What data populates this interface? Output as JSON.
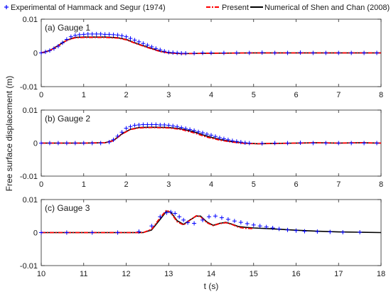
{
  "chart_data": {
    "type": "line",
    "ylabel": "Free surface displacement (m)",
    "xlabel": "t (s)",
    "legend": {
      "placement": "top",
      "entries": [
        {
          "label": "Experimental of Hammack and Segur (1974)",
          "marker": "+",
          "color": "#0000ff"
        },
        {
          "label": "Present",
          "style": "dash-dot",
          "color": "#ff0000"
        },
        {
          "label": "Numerical of Shen and Chan (2008)",
          "style": "solid",
          "color": "#000000"
        }
      ]
    },
    "panels": [
      {
        "title": "(a) Gauge 1",
        "xlim": [
          0,
          8
        ],
        "ylim": [
          -0.01,
          0.01
        ],
        "xticks": [
          "0",
          "1",
          "2",
          "3",
          "4",
          "5",
          "6",
          "7",
          "8"
        ],
        "yticks": [
          "-0.01",
          "0",
          "0.01"
        ],
        "series": [
          {
            "name": "Numerical of Shen and Chan (2008)",
            "color": "#000000",
            "style": "solid",
            "x": [
              0,
              0.2,
              0.4,
              0.6,
              0.8,
              1.0,
              1.5,
              1.8,
              2.0,
              2.2,
              2.5,
              2.8,
              3.0,
              3.3,
              4.0,
              5.0,
              6.0,
              7.0,
              8.0
            ],
            "y": [
              0,
              0.0007,
              0.0022,
              0.0038,
              0.0046,
              0.0047,
              0.0047,
              0.0045,
              0.004,
              0.003,
              0.0017,
              0.0005,
              0.0,
              -0.0002,
              -0.0001,
              0,
              0,
              0,
              0
            ]
          },
          {
            "name": "Present",
            "color": "#ff0000",
            "style": "dash-dot",
            "x": [
              0,
              0.2,
              0.4,
              0.6,
              0.8,
              1.0,
              1.5,
              1.8,
              2.0,
              2.2,
              2.5,
              2.8,
              3.0,
              3.3,
              4.0,
              5.0,
              6.0,
              7.0,
              8.0
            ],
            "y": [
              0,
              0.0007,
              0.0021,
              0.0037,
              0.0045,
              0.0046,
              0.0046,
              0.0044,
              0.0039,
              0.0029,
              0.0016,
              0.0004,
              0.0,
              -0.0002,
              -0.0001,
              0,
              0,
              0,
              0
            ]
          },
          {
            "name": "Experimental of Hammack and Segur (1974)",
            "color": "#0000ff",
            "style": "markers",
            "x": [
              0,
              0.1,
              0.2,
              0.3,
              0.4,
              0.5,
              0.6,
              0.7,
              0.8,
              0.9,
              1.0,
              1.1,
              1.2,
              1.3,
              1.4,
              1.5,
              1.6,
              1.7,
              1.8,
              1.9,
              2.0,
              2.1,
              2.2,
              2.3,
              2.4,
              2.5,
              2.6,
              2.7,
              2.8,
              2.9,
              3.0,
              3.1,
              3.2,
              3.3,
              3.4,
              3.6,
              3.8,
              4.0,
              4.3,
              4.6,
              4.9,
              5.2,
              5.5,
              5.8,
              6.1,
              6.4,
              6.7,
              7.0,
              7.3,
              7.6,
              7.9
            ],
            "y": [
              0,
              0.0003,
              0.0007,
              0.0013,
              0.002,
              0.003,
              0.004,
              0.0048,
              0.0052,
              0.0054,
              0.0055,
              0.0056,
              0.0056,
              0.0056,
              0.0056,
              0.0055,
              0.0055,
              0.0054,
              0.0053,
              0.0051,
              0.0048,
              0.0043,
              0.0038,
              0.0033,
              0.0028,
              0.0023,
              0.0018,
              0.0013,
              0.0009,
              0.0005,
              0.0002,
              0.0001,
              0.0,
              -0.0001,
              -0.0001,
              -0.0001,
              0.0,
              0,
              0,
              0,
              0,
              0.0001,
              0,
              0,
              0.0001,
              0,
              0,
              0,
              0,
              0,
              0
            ]
          }
        ]
      },
      {
        "title": "(b) Gauge 2",
        "xlim": [
          0,
          8
        ],
        "ylim": [
          -0.01,
          0.01
        ],
        "xticks": [
          "0",
          "1",
          "2",
          "3",
          "4",
          "5",
          "6",
          "7",
          "8"
        ],
        "yticks": [
          "-0.01",
          "0",
          "0.01"
        ],
        "series": [
          {
            "name": "Numerical of Shen and Chan (2008)",
            "color": "#000000",
            "style": "solid",
            "x": [
              0,
              1.0,
              1.5,
              1.7,
              1.9,
              2.1,
              2.3,
              2.6,
              3.0,
              3.3,
              3.6,
              3.9,
              4.2,
              4.5,
              4.8,
              5.1,
              5.5,
              6.0,
              6.5,
              7.0,
              7.5,
              8.0
            ],
            "y": [
              0,
              0,
              0.0001,
              0.0008,
              0.0028,
              0.0042,
              0.0047,
              0.0048,
              0.0047,
              0.0043,
              0.0034,
              0.0021,
              0.0011,
              0.0004,
              0.0,
              -0.0002,
              -0.0001,
              0,
              0.0001,
              0,
              0.0001,
              0
            ]
          },
          {
            "name": "Present",
            "color": "#ff0000",
            "style": "dash-dot",
            "x": [
              0,
              1.0,
              1.5,
              1.7,
              1.9,
              2.1,
              2.3,
              2.6,
              3.0,
              3.3,
              3.6,
              3.9,
              4.2,
              4.5,
              4.8,
              5.1,
              5.5,
              6.0,
              6.5,
              7.0,
              7.5,
              8.0
            ],
            "y": [
              0,
              0,
              0.0001,
              0.0007,
              0.0027,
              0.0041,
              0.0046,
              0.0047,
              0.0046,
              0.0041,
              0.0031,
              0.0018,
              0.0009,
              0.0003,
              -0.0001,
              -0.0002,
              -0.0001,
              0,
              0.0001,
              0,
              0.0001,
              0
            ]
          },
          {
            "name": "Experimental of Hammack and Segur (1974)",
            "color": "#0000ff",
            "style": "markers",
            "x": [
              0,
              0.2,
              0.4,
              0.6,
              0.8,
              1.0,
              1.2,
              1.4,
              1.6,
              1.7,
              1.8,
              1.9,
              2.0,
              2.1,
              2.2,
              2.3,
              2.4,
              2.5,
              2.6,
              2.7,
              2.8,
              2.9,
              3.0,
              3.1,
              3.2,
              3.3,
              3.4,
              3.5,
              3.6,
              3.7,
              3.8,
              3.9,
              4.0,
              4.1,
              4.2,
              4.3,
              4.4,
              4.5,
              4.6,
              4.7,
              4.8,
              4.9,
              5.2,
              5.5,
              5.8,
              6.1,
              6.4,
              6.7,
              7.0,
              7.3,
              7.6,
              7.9
            ],
            "y": [
              0,
              0,
              0,
              0,
              0,
              0,
              0,
              0,
              0.0003,
              0.001,
              0.0021,
              0.0033,
              0.0045,
              0.005,
              0.0054,
              0.0055,
              0.0056,
              0.0056,
              0.0056,
              0.0056,
              0.0055,
              0.0055,
              0.0054,
              0.0052,
              0.005,
              0.0047,
              0.0044,
              0.0041,
              0.0038,
              0.0034,
              0.0031,
              0.0027,
              0.0024,
              0.002,
              0.0016,
              0.0013,
              0.001,
              0.0007,
              0.0005,
              0.0003,
              0.0001,
              0,
              -0.0001,
              0,
              0,
              0.0001,
              0,
              0,
              0,
              0,
              0,
              0
            ]
          }
        ]
      },
      {
        "title": "(c) Gauge 3",
        "xlim": [
          10,
          18
        ],
        "ylim": [
          -0.01,
          0.01
        ],
        "xticks": [
          "10",
          "11",
          "12",
          "13",
          "14",
          "15",
          "16",
          "17",
          "18"
        ],
        "yticks": [
          "-0.01",
          "0",
          "0.01"
        ],
        "series": [
          {
            "name": "Numerical of Shen and Chan (2008)",
            "color": "#000000",
            "style": "solid",
            "x": [
              10,
              12.0,
              12.4,
              12.6,
              12.8,
              12.95,
              13.05,
              13.2,
              13.35,
              13.5,
              13.65,
              13.75,
              13.9,
              14.05,
              14.2,
              14.35,
              14.5,
              14.65,
              14.8,
              15.0,
              15.5,
              16.0,
              16.5,
              17.0,
              17.5,
              18.0
            ],
            "y": [
              0,
              0,
              0,
              0.0008,
              0.004,
              0.0065,
              0.0062,
              0.0036,
              0.0025,
              0.0038,
              0.005,
              0.005,
              0.0032,
              0.0022,
              0.0028,
              0.0031,
              0.0025,
              0.0018,
              0.0016,
              0.0014,
              0.0011,
              0.0007,
              0.0004,
              0.0002,
              0.0001,
              0
            ]
          },
          {
            "name": "Present",
            "color": "#ff0000",
            "style": "dash-dot",
            "x": [
              10,
              12.0,
              12.4,
              12.6,
              12.8,
              12.95,
              13.05,
              13.2,
              13.35,
              13.5,
              13.65,
              13.75,
              13.9,
              14.05,
              14.2,
              14.35,
              14.5,
              14.65,
              14.8,
              15.0
            ],
            "y": [
              0,
              0,
              0,
              0.001,
              0.0045,
              0.0068,
              0.006,
              0.0033,
              0.0023,
              0.0037,
              0.0051,
              0.0048,
              0.003,
              0.0021,
              0.0027,
              0.003,
              0.0024,
              0.0016,
              0.0013,
              0.0012
            ]
          },
          {
            "name": "Experimental of Hammack and Segur (1974)",
            "color": "#0000ff",
            "style": "markers",
            "x": [
              10,
              10.6,
              11.2,
              11.8,
              12.3,
              12.6,
              12.8,
              12.95,
              13.05,
              13.15,
              13.25,
              13.35,
              13.45,
              13.6,
              13.8,
              13.95,
              14.1,
              14.25,
              14.4,
              14.55,
              14.7,
              14.85,
              15.0,
              15.15,
              15.3,
              15.45,
              15.6,
              15.8,
              16.0,
              16.2,
              16.5,
              16.8,
              17.1,
              17.5
            ],
            "y": [
              0,
              0,
              0,
              0,
              0.0003,
              0.002,
              0.0048,
              0.006,
              0.0062,
              0.0058,
              0.0048,
              0.0038,
              0.003,
              0.0028,
              0.0038,
              0.0048,
              0.005,
              0.0045,
              0.004,
              0.0035,
              0.0031,
              0.0027,
              0.0023,
              0.002,
              0.0017,
              0.0014,
              0.0011,
              0.0008,
              0.0006,
              0.0004,
              0.0003,
              0.0002,
              0.0001,
              0.0001
            ]
          }
        ]
      }
    ]
  }
}
